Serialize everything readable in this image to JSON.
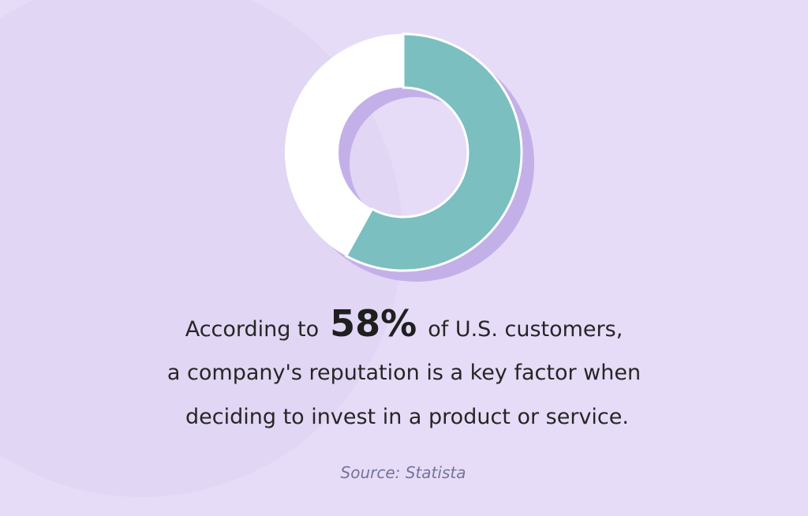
{
  "chart_data": {
    "type": "donut",
    "values": [
      58
    ],
    "value_labels": [
      "58%"
    ],
    "color": "#7bbfc0",
    "text": {
      "line1_before": "According to",
      "line1_after": "of U.S. customers,",
      "line2": "a company's reputation is a key factor when",
      "line3": "deciding to invest in a product or service."
    },
    "source": "Source: Statista"
  }
}
